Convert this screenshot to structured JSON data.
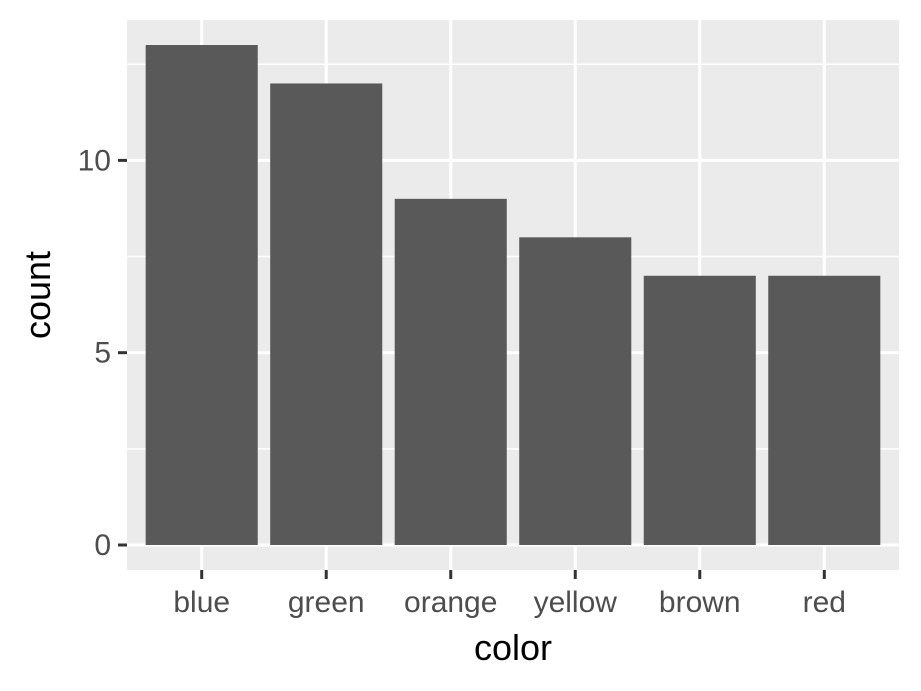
{
  "chart_data": {
    "type": "bar",
    "categories": [
      "blue",
      "green",
      "orange",
      "yellow",
      "brown",
      "red"
    ],
    "values": [
      13,
      12,
      9,
      8,
      7,
      7
    ],
    "title": "",
    "xlabel": "color",
    "ylabel": "count",
    "ylim": [
      -0.65,
      13.65
    ],
    "yticks": [
      0,
      5,
      10
    ],
    "y_minor_ticks": [
      2.5,
      7.5,
      12.5
    ],
    "grid": true,
    "legend": "none",
    "colors": {
      "bar": "#595959",
      "panel": "#ebebeb",
      "grid": "#ffffff",
      "tick_text": "#4d4d4d",
      "tick_mark": "#333333",
      "title_text": "#000000"
    }
  }
}
